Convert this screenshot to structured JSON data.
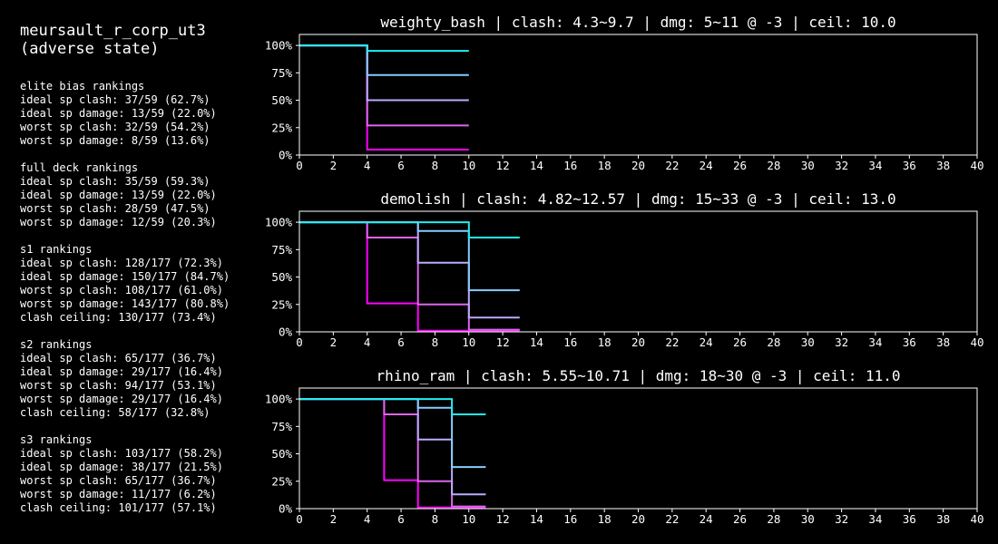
{
  "header": {
    "title": "meursault_r_corp_ut3\n(adverse state)"
  },
  "stats": [
    {
      "heading": "elite bias rankings",
      "lines": [
        "ideal sp clash: 37/59 (62.7%)",
        "ideal sp damage: 13/59 (22.0%)",
        "worst sp clash: 32/59 (54.2%)",
        "worst sp damage: 8/59 (13.6%)"
      ]
    },
    {
      "heading": "full deck rankings",
      "lines": [
        "ideal sp clash: 35/59 (59.3%)",
        "ideal sp damage: 13/59 (22.0%)",
        "worst sp clash: 28/59 (47.5%)",
        "worst sp damage: 12/59 (20.3%)"
      ]
    },
    {
      "heading": "s1 rankings",
      "lines": [
        "ideal sp clash: 128/177 (72.3%)",
        "ideal sp damage: 150/177 (84.7%)",
        "worst sp clash: 108/177 (61.0%)",
        "worst sp damage: 143/177 (80.8%)",
        "clash ceiling: 130/177 (73.4%)"
      ]
    },
    {
      "heading": "s2 rankings",
      "lines": [
        "ideal sp clash: 65/177 (36.7%)",
        "ideal sp damage: 29/177 (16.4%)",
        "worst sp clash: 94/177 (53.1%)",
        "worst sp damage: 29/177 (16.4%)",
        "clash ceiling: 58/177 (32.8%)"
      ]
    },
    {
      "heading": "s3 rankings",
      "lines": [
        "ideal sp clash: 103/177 (58.2%)",
        "ideal sp damage: 38/177 (21.5%)",
        "worst sp clash: 65/177 (36.7%)",
        "worst sp damage: 11/177 (6.2%)",
        "clash ceiling: 101/177 (57.1%)"
      ]
    }
  ],
  "chart_data": [
    {
      "type": "line",
      "title": "weighty_bash | clash: 4.3~9.7 | dmg: 5~11 @ -3 | ceil: 10.0",
      "xlim": [
        0,
        40
      ],
      "ylim": [
        0,
        1.1
      ],
      "xticks": [
        0,
        2,
        4,
        6,
        8,
        10,
        12,
        14,
        16,
        18,
        20,
        22,
        24,
        26,
        28,
        30,
        32,
        34,
        36,
        38,
        40
      ],
      "yticks": [
        0,
        0.25,
        0.5,
        0.75,
        1.0
      ],
      "ytick_labels": [
        "0%",
        "25%",
        "50%",
        "75%",
        "100%"
      ],
      "series": [
        {
          "color": "#ff00ff",
          "points": [
            [
              0,
              1.0
            ],
            [
              4,
              1.0
            ],
            [
              4,
              0.05
            ],
            [
              10,
              0.05
            ]
          ]
        },
        {
          "color": "#dd66ee",
          "points": [
            [
              0,
              1.0
            ],
            [
              4,
              1.0
            ],
            [
              4,
              0.27
            ],
            [
              10,
              0.27
            ]
          ]
        },
        {
          "color": "#bbaaff",
          "points": [
            [
              0,
              1.0
            ],
            [
              4,
              1.0
            ],
            [
              4,
              0.5
            ],
            [
              10,
              0.5
            ]
          ]
        },
        {
          "color": "#88ccff",
          "points": [
            [
              0,
              1.0
            ],
            [
              4,
              1.0
            ],
            [
              4,
              0.73
            ],
            [
              10,
              0.73
            ]
          ]
        },
        {
          "color": "#22eeee",
          "points": [
            [
              0,
              1.0
            ],
            [
              4,
              1.0
            ],
            [
              4,
              0.95
            ],
            [
              10,
              0.95
            ]
          ]
        }
      ]
    },
    {
      "type": "line",
      "title": "demolish | clash: 4.82~12.57 | dmg: 15~33 @ -3 | ceil: 13.0",
      "xlim": [
        0,
        40
      ],
      "ylim": [
        0,
        1.1
      ],
      "xticks": [
        0,
        2,
        4,
        6,
        8,
        10,
        12,
        14,
        16,
        18,
        20,
        22,
        24,
        26,
        28,
        30,
        32,
        34,
        36,
        38,
        40
      ],
      "yticks": [
        0,
        0.25,
        0.5,
        0.75,
        1.0
      ],
      "ytick_labels": [
        "0%",
        "25%",
        "50%",
        "75%",
        "100%"
      ],
      "series": [
        {
          "color": "#ff00ff",
          "points": [
            [
              0,
              1.0
            ],
            [
              4,
              1.0
            ],
            [
              4,
              0.26
            ],
            [
              7,
              0.26
            ],
            [
              7,
              0.01
            ],
            [
              13,
              0.01
            ]
          ]
        },
        {
          "color": "#dd66ee",
          "points": [
            [
              0,
              1.0
            ],
            [
              4,
              1.0
            ],
            [
              4,
              0.86
            ],
            [
              7,
              0.86
            ],
            [
              7,
              0.25
            ],
            [
              10,
              0.25
            ],
            [
              10,
              0.02
            ],
            [
              13,
              0.02
            ]
          ]
        },
        {
          "color": "#bbaaff",
          "points": [
            [
              0,
              1.0
            ],
            [
              7,
              1.0
            ],
            [
              7,
              0.63
            ],
            [
              10,
              0.63
            ],
            [
              10,
              0.13
            ],
            [
              13,
              0.13
            ]
          ]
        },
        {
          "color": "#88ccff",
          "points": [
            [
              0,
              1.0
            ],
            [
              7,
              1.0
            ],
            [
              7,
              0.92
            ],
            [
              10,
              0.92
            ],
            [
              10,
              0.38
            ],
            [
              13,
              0.38
            ]
          ]
        },
        {
          "color": "#22eeee",
          "points": [
            [
              0,
              1.0
            ],
            [
              10,
              1.0
            ],
            [
              10,
              0.86
            ],
            [
              13,
              0.86
            ]
          ]
        }
      ]
    },
    {
      "type": "line",
      "title": "rhino_ram | clash: 5.55~10.71 | dmg: 18~30 @ -3 | ceil: 11.0",
      "xlim": [
        0,
        40
      ],
      "ylim": [
        0,
        1.1
      ],
      "xticks": [
        0,
        2,
        4,
        6,
        8,
        10,
        12,
        14,
        16,
        18,
        20,
        22,
        24,
        26,
        28,
        30,
        32,
        34,
        36,
        38,
        40
      ],
      "yticks": [
        0,
        0.25,
        0.5,
        0.75,
        1.0
      ],
      "ytick_labels": [
        "0%",
        "25%",
        "50%",
        "75%",
        "100%"
      ],
      "series": [
        {
          "color": "#ff00ff",
          "points": [
            [
              0,
              1.0
            ],
            [
              5,
              1.0
            ],
            [
              5,
              0.26
            ],
            [
              7,
              0.26
            ],
            [
              7,
              0.01
            ],
            [
              11,
              0.01
            ]
          ]
        },
        {
          "color": "#dd66ee",
          "points": [
            [
              0,
              1.0
            ],
            [
              5,
              1.0
            ],
            [
              5,
              0.86
            ],
            [
              7,
              0.86
            ],
            [
              7,
              0.25
            ],
            [
              9,
              0.25
            ],
            [
              9,
              0.02
            ],
            [
              11,
              0.02
            ]
          ]
        },
        {
          "color": "#bbaaff",
          "points": [
            [
              0,
              1.0
            ],
            [
              7,
              1.0
            ],
            [
              7,
              0.63
            ],
            [
              9,
              0.63
            ],
            [
              9,
              0.13
            ],
            [
              11,
              0.13
            ]
          ]
        },
        {
          "color": "#88ccff",
          "points": [
            [
              0,
              1.0
            ],
            [
              7,
              1.0
            ],
            [
              7,
              0.92
            ],
            [
              9,
              0.92
            ],
            [
              9,
              0.38
            ],
            [
              11,
              0.38
            ]
          ]
        },
        {
          "color": "#22eeee",
          "points": [
            [
              0,
              1.0
            ],
            [
              9,
              1.0
            ],
            [
              9,
              0.86
            ],
            [
              11,
              0.86
            ]
          ]
        }
      ]
    }
  ]
}
